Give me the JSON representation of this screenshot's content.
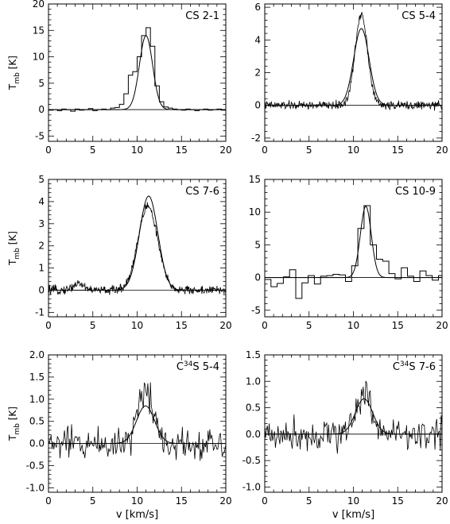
{
  "figure": {
    "xlabel": "v [km/s]",
    "ylabel_main": "T",
    "ylabel_sub": "mb",
    "ylabel_unit": " [K]"
  },
  "chart_data": [
    {
      "type": "line",
      "title": "CS 2-1",
      "xlim": [
        0,
        20
      ],
      "ylim": [
        -6,
        20
      ],
      "xticks": [
        0,
        5,
        10,
        15,
        20
      ],
      "yticks": [
        -5,
        0,
        5,
        10,
        15,
        20
      ],
      "ytick_labels": [
        "-5",
        "0",
        "5",
        "10",
        "15",
        "20"
      ],
      "series": [
        {
          "kind": "observed-step",
          "x": [
            0,
            0.5,
            1,
            1.5,
            2,
            2.5,
            3,
            3.5,
            4,
            4.5,
            5,
            5.5,
            6,
            6.5,
            7,
            7.5,
            8,
            8.5,
            9,
            9.5,
            10,
            10.5,
            11,
            11.5,
            12,
            12.5,
            13,
            13.5,
            14,
            14.5,
            15,
            15.5,
            16,
            16.5,
            17,
            17.5,
            18,
            18.5,
            19,
            19.5,
            20
          ],
          "y": [
            -0.1,
            0,
            -0.2,
            0.1,
            0,
            -0.3,
            0.1,
            -0.1,
            0,
            0.2,
            -0.2,
            0,
            0.1,
            0,
            0.3,
            0.4,
            1,
            3,
            6.5,
            7.2,
            10,
            14,
            15.5,
            12,
            4.5,
            1.5,
            0.5,
            0.3,
            0.1,
            0,
            -0.1,
            0.1,
            0,
            -0.2,
            0,
            0.1,
            -0.1,
            0,
            0.1,
            -0.1,
            0
          ]
        },
        {
          "kind": "gaussian-fit",
          "amplitude": 14,
          "center": 11.0,
          "fwhm": 1.75
        }
      ]
    },
    {
      "type": "line",
      "title": "CS 5-4",
      "xlim": [
        0,
        20
      ],
      "ylim": [
        -2.2,
        6.2
      ],
      "xticks": [
        0,
        5,
        10,
        15,
        20
      ],
      "yticks": [
        -2,
        0,
        2,
        4,
        6
      ],
      "ytick_labels": [
        "-2",
        "0",
        "2",
        "4",
        "6"
      ],
      "series": [
        {
          "kind": "observed-noise",
          "amplitude": 5.6,
          "center": 10.9,
          "fwhm": 1.65,
          "noise": 0.18,
          "step": 0.05
        },
        {
          "kind": "gaussian-fit",
          "amplitude": 4.7,
          "center": 10.9,
          "fwhm": 2.05
        }
      ]
    },
    {
      "type": "line",
      "title": "CS 7-6",
      "xlim": [
        0,
        20
      ],
      "ylim": [
        -1.2,
        5
      ],
      "xticks": [
        0,
        5,
        10,
        15,
        20
      ],
      "yticks": [
        -1,
        0,
        1,
        2,
        3,
        4,
        5
      ],
      "ytick_labels": [
        "-1",
        "0",
        "1",
        "2",
        "3",
        "4",
        "5"
      ],
      "series": [
        {
          "kind": "observed-noise",
          "amplitude": 3.8,
          "center": 11.2,
          "fwhm": 2.6,
          "noise": 0.14,
          "step": 0.05,
          "bump_center": 3.4,
          "bump_amp": 0.3
        },
        {
          "kind": "gaussian-fit",
          "amplitude": 4.25,
          "center": 11.3,
          "fwhm": 2.45
        }
      ]
    },
    {
      "type": "line",
      "title": "CS 10-9",
      "xlim": [
        0,
        20
      ],
      "ylim": [
        -6,
        15
      ],
      "xticks": [
        0,
        5,
        10,
        15,
        20
      ],
      "yticks": [
        -5,
        0,
        5,
        10,
        15
      ],
      "ytick_labels": [
        "-5",
        "0",
        "5",
        "10",
        "15"
      ],
      "series": [
        {
          "kind": "observed-step",
          "x": [
            0,
            0.7,
            1.4,
            2.1,
            2.8,
            3.5,
            4.2,
            4.9,
            5.6,
            6.3,
            7.0,
            7.7,
            8.4,
            9.1,
            9.8,
            10.5,
            11.2,
            11.9,
            12.6,
            13.3,
            14.0,
            14.7,
            15.4,
            16.1,
            16.8,
            17.5,
            18.2,
            18.9,
            19.6,
            20
          ],
          "y": [
            -0.3,
            -1.4,
            -0.9,
            0.1,
            1.2,
            -3.2,
            -0.8,
            0.3,
            -1.0,
            0.2,
            0.3,
            0.5,
            0.4,
            -0.6,
            1.8,
            7.5,
            11,
            5,
            2.8,
            2.5,
            0.6,
            -0.2,
            1.5,
            0.2,
            -0.6,
            1.0,
            0.3,
            -0.4,
            0.3,
            0.3
          ]
        },
        {
          "kind": "gaussian-fit",
          "amplitude": 10.9,
          "center": 11.4,
          "fwhm": 1.45
        }
      ]
    },
    {
      "type": "line",
      "title_prefix": "C",
      "title_sup": "34",
      "title_suffix": "S 5-4",
      "xlim": [
        0,
        20
      ],
      "ylim": [
        -1.1,
        2.0
      ],
      "xticks": [
        0,
        5,
        10,
        15,
        20
      ],
      "yticks": [
        -1.0,
        -0.5,
        0.0,
        0.5,
        1.0,
        1.5,
        2.0
      ],
      "ytick_labels": [
        "-1.0",
        "-0.5",
        "0.0",
        "0.5",
        "1.0",
        "1.5",
        "2.0"
      ],
      "series": [
        {
          "kind": "observed-noise",
          "amplitude": 1.2,
          "center": 11.0,
          "fwhm": 2.2,
          "noise": 0.27,
          "step": 0.1
        },
        {
          "kind": "gaussian-fit",
          "amplitude": 0.85,
          "center": 10.95,
          "fwhm": 2.4
        }
      ]
    },
    {
      "type": "line",
      "title_prefix": "C",
      "title_sup": "34",
      "title_suffix": "S 7-6",
      "xlim": [
        0,
        20
      ],
      "ylim": [
        -1.1,
        1.5
      ],
      "xticks": [
        0,
        5,
        10,
        15,
        20
      ],
      "yticks": [
        -1.0,
        -0.5,
        0.0,
        0.5,
        1.0,
        1.5
      ],
      "ytick_labels": [
        "-1.0",
        "-0.5",
        "0.0",
        "0.5",
        "1.0",
        "1.5"
      ],
      "series": [
        {
          "kind": "observed-noise",
          "amplitude": 0.75,
          "center": 11.2,
          "fwhm": 2.3,
          "noise": 0.22,
          "step": 0.1
        },
        {
          "kind": "gaussian-fit",
          "amplitude": 0.67,
          "center": 11.2,
          "fwhm": 2.3
        }
      ]
    }
  ]
}
